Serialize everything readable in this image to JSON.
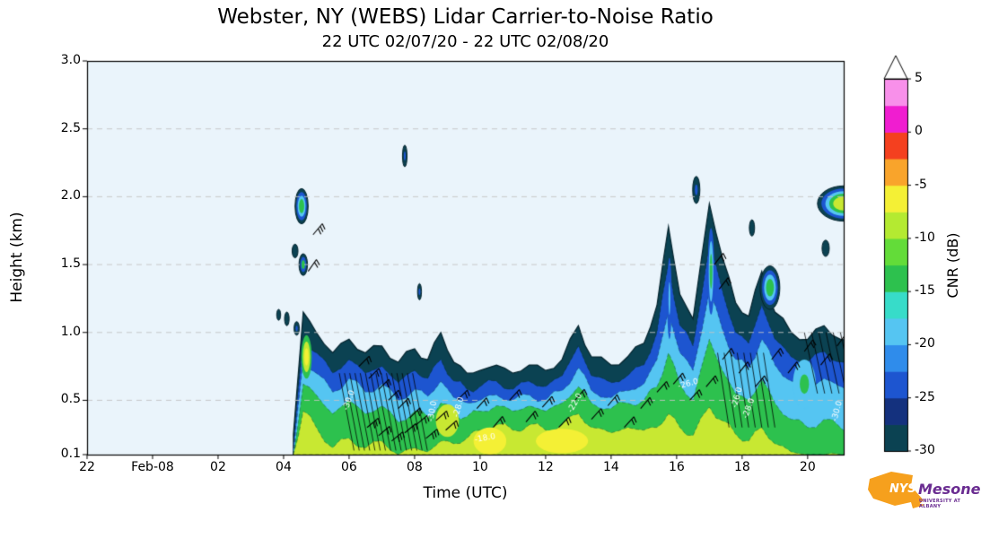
{
  "figure": {
    "title": "Webster, NY (WEBS) Lidar Carrier-to-Noise Ratio",
    "subtitle": "22 UTC 02/07/20 - 22 UTC 02/08/20"
  },
  "axes": {
    "xlabel": "Time (UTC)",
    "ylabel": "Height (km)",
    "x_ticks": [
      {
        "t": 0,
        "label": "22"
      },
      {
        "t": 2,
        "label": "Feb-08"
      },
      {
        "t": 4,
        "label": "02"
      },
      {
        "t": 6,
        "label": "04"
      },
      {
        "t": 8,
        "label": "06"
      },
      {
        "t": 10,
        "label": "08"
      },
      {
        "t": 12,
        "label": "10"
      },
      {
        "t": 14,
        "label": "12"
      },
      {
        "t": 16,
        "label": "14"
      },
      {
        "t": 18,
        "label": "16"
      },
      {
        "t": 20,
        "label": "18"
      },
      {
        "t": 22,
        "label": "20"
      }
    ],
    "y_ticks": [
      {
        "v": 0.1,
        "label": "0.1"
      },
      {
        "v": 0.5,
        "label": "0.5"
      },
      {
        "v": 1.0,
        "label": "1.0"
      },
      {
        "v": 1.5,
        "label": "1.5"
      },
      {
        "v": 2.0,
        "label": "2.0"
      },
      {
        "v": 2.5,
        "label": "2.5"
      },
      {
        "v": 3.0,
        "label": "3.0"
      }
    ]
  },
  "colorbar": {
    "label": "CNR (dB)",
    "min": -30,
    "max": 5,
    "band_step": 2.5,
    "tick_labels": [
      {
        "v": 5,
        "label": "5"
      },
      {
        "v": 0,
        "label": "0"
      },
      {
        "v": -5,
        "label": "-5"
      },
      {
        "v": -10,
        "label": "-10"
      },
      {
        "v": -15,
        "label": "-15"
      },
      {
        "v": -20,
        "label": "-20"
      },
      {
        "v": -25,
        "label": "-25"
      },
      {
        "v": -30,
        "label": "-30"
      }
    ],
    "colors_bottom_to_top": [
      "#0b4252",
      "#14317e",
      "#1d55d0",
      "#2f8ceb",
      "#55c5f2",
      "#37dcc9",
      "#2dc14e",
      "#63dc39",
      "#b4ea31",
      "#f4f035",
      "#f9a42b",
      "#f4401f",
      "#f01dd0",
      "#f890ea"
    ],
    "over_color": "#ffffff"
  },
  "chart_data": {
    "type": "heatmap",
    "subtype": "filled-contour time-height lidar CNR",
    "title": "Webster, NY (WEBS) Lidar Carrier-to-Noise Ratio",
    "subtitle": "22 UTC 02/07/20 - 22 UTC 02/08/20",
    "xlabel": "Time (UTC)",
    "ylabel": "Height (km)",
    "x_unit": "hours since 22 UTC 02/07/20",
    "x_range": [
      0,
      23.1
    ],
    "y_range_km": [
      0.1,
      3.0
    ],
    "background_color": "#eaf4fb",
    "grid_heights_km": [
      0.5,
      1.0,
      1.5,
      2.0,
      2.5,
      3.0
    ],
    "base_km": 0.1,
    "t_hours": [
      6.3,
      6.6,
      7.0,
      7.5,
      8.0,
      8.5,
      9.0,
      9.5,
      10.0,
      10.4,
      10.8,
      11.2,
      11.6,
      12.0,
      12.5,
      13.0,
      13.5,
      14.0,
      14.5,
      15.0,
      15.4,
      16.0,
      16.5,
      17.0,
      17.4,
      17.75,
      18.1,
      18.5,
      19.0,
      19.4,
      19.8,
      20.2,
      20.6,
      21.0,
      21.5,
      22.0,
      22.5,
      23.0,
      23.6,
      24.0
    ],
    "levels": [
      {
        "cnr_db": -30,
        "color": "#0b4252",
        "top_km": [
          0.25,
          1.15,
          1.0,
          0.85,
          0.95,
          0.85,
          0.9,
          0.78,
          0.88,
          0.8,
          1.0,
          0.78,
          0.7,
          0.72,
          0.76,
          0.7,
          0.76,
          0.72,
          0.8,
          1.05,
          0.82,
          0.76,
          0.82,
          0.92,
          1.2,
          1.78,
          1.28,
          1.1,
          1.95,
          1.55,
          1.22,
          1.12,
          1.45,
          1.15,
          1.0,
          0.95,
          1.05,
          0.95,
          0.9,
          0.92
        ]
      },
      {
        "cnr_db": -25,
        "color": "#1d55d0",
        "top_km": [
          0.15,
          0.95,
          0.85,
          0.7,
          0.8,
          0.7,
          0.75,
          0.63,
          0.72,
          0.66,
          0.8,
          0.64,
          0.58,
          0.6,
          0.64,
          0.58,
          0.64,
          0.6,
          0.68,
          0.9,
          0.68,
          0.63,
          0.68,
          0.76,
          1.0,
          1.5,
          1.05,
          0.9,
          1.65,
          1.3,
          1.0,
          0.92,
          1.2,
          0.95,
          0.82,
          0.78,
          0.86,
          0.78,
          0.72,
          0.75
        ]
      },
      {
        "cnr_db": -20,
        "color": "#55c5f2",
        "top_km": [
          0.1,
          0.8,
          0.7,
          0.56,
          0.66,
          0.56,
          0.62,
          0.5,
          0.58,
          0.53,
          0.64,
          0.52,
          0.48,
          0.5,
          0.54,
          0.5,
          0.54,
          0.5,
          0.57,
          0.74,
          0.57,
          0.52,
          0.57,
          0.62,
          0.8,
          1.15,
          0.85,
          0.72,
          1.3,
          1.02,
          0.8,
          0.74,
          0.95,
          0.76,
          0.64,
          0.6,
          0.66,
          0.6,
          0.55,
          0.56
        ]
      },
      {
        "cnr_db": -15,
        "color": "#2dc14e",
        "top_km": [
          0.1,
          0.62,
          0.54,
          0.4,
          0.5,
          0.4,
          0.46,
          0.34,
          0.42,
          0.38,
          0.48,
          0.4,
          0.38,
          0.42,
          0.46,
          0.42,
          0.46,
          0.42,
          0.48,
          0.6,
          0.48,
          0.44,
          0.48,
          0.5,
          0.6,
          0.85,
          0.62,
          0.5,
          0.95,
          0.72,
          0.55,
          0.5,
          0.65,
          0.48,
          0.36,
          0.3,
          0.36,
          0.3,
          0.22,
          0.18
        ]
      },
      {
        "cnr_db": -10,
        "color": "#c8e832",
        "top_km": [
          0.1,
          0.42,
          0.3,
          0.15,
          0.22,
          0.15,
          0.2,
          0.1,
          0.15,
          0.12,
          0.2,
          0.18,
          0.22,
          0.28,
          0.32,
          0.28,
          0.32,
          0.28,
          0.32,
          0.4,
          0.3,
          0.26,
          0.3,
          0.28,
          0.3,
          0.4,
          0.3,
          0.24,
          0.45,
          0.35,
          0.25,
          0.2,
          0.3,
          0.18,
          0.12,
          0.1,
          0.1,
          0.1,
          0.1,
          0.1
        ]
      }
    ],
    "blobs": [
      {
        "t": 6.55,
        "h": 1.93,
        "rt": 0.2,
        "rh": 0.13,
        "colors": [
          "#0b4252",
          "#1d55d0",
          "#55c5f2",
          "#2dc14e"
        ]
      },
      {
        "t": 6.35,
        "h": 1.6,
        "rt": 0.09,
        "rh": 0.05,
        "colors": [
          "#0b4252"
        ]
      },
      {
        "t": 6.6,
        "h": 1.5,
        "rt": 0.13,
        "rh": 0.08,
        "colors": [
          "#0b4252",
          "#1d55d0",
          "#2dc14e"
        ]
      },
      {
        "t": 6.1,
        "h": 1.1,
        "rt": 0.07,
        "rh": 0.05,
        "colors": [
          "#0b4252"
        ]
      },
      {
        "t": 6.4,
        "h": 1.03,
        "rt": 0.08,
        "rh": 0.05,
        "colors": [
          "#0b4252",
          "#1d55d0"
        ]
      },
      {
        "t": 5.85,
        "h": 1.13,
        "rt": 0.06,
        "rh": 0.04,
        "colors": [
          "#0b4252"
        ]
      },
      {
        "t": 9.7,
        "h": 2.3,
        "rt": 0.07,
        "rh": 0.08,
        "colors": [
          "#0b4252",
          "#1d55d0"
        ]
      },
      {
        "t": 10.15,
        "h": 1.3,
        "rt": 0.06,
        "rh": 0.06,
        "colors": [
          "#0b4252",
          "#1d55d0"
        ]
      },
      {
        "t": 18.6,
        "h": 2.05,
        "rt": 0.11,
        "rh": 0.1,
        "colors": [
          "#0b4252",
          "#1d55d0"
        ]
      },
      {
        "t": 20.85,
        "h": 1.33,
        "rt": 0.3,
        "rh": 0.16,
        "colors": [
          "#0b4252",
          "#1d55d0",
          "#55c5f2",
          "#2dc14e"
        ]
      },
      {
        "t": 23.1,
        "h": 1.95,
        "rt": 0.8,
        "rh": 0.13,
        "colors": [
          "#0b4252",
          "#1d55d0",
          "#55c5f2",
          "#2dc14e",
          "#c8e832"
        ]
      },
      {
        "t": 23.7,
        "h": 1.42,
        "rt": 0.22,
        "rh": 0.09,
        "colors": [
          "#0b4252",
          "#1d55d0"
        ]
      },
      {
        "t": 22.55,
        "h": 1.62,
        "rt": 0.11,
        "rh": 0.06,
        "colors": [
          "#0b4252"
        ]
      },
      {
        "t": 20.3,
        "h": 1.77,
        "rt": 0.08,
        "rh": 0.06,
        "colors": [
          "#0b4252"
        ]
      },
      {
        "t": 6.7,
        "h": 0.82,
        "rt": 0.16,
        "rh": 0.16,
        "colors": [
          "#2dc14e",
          "#c8e832",
          "#f4f035"
        ]
      },
      {
        "t": 19.05,
        "h": 1.45,
        "rt": 0.1,
        "rh": 0.32,
        "colors": [
          "#1d55d0",
          "#55c5f2",
          "#2dc14e"
        ]
      },
      {
        "t": 17.78,
        "h": 1.25,
        "rt": 0.07,
        "rh": 0.3,
        "colors": [
          "#1d55d0",
          "#55c5f2"
        ]
      },
      {
        "t": 12.3,
        "h": 0.2,
        "rt": 0.5,
        "rh": 0.1,
        "colors": [
          "#f4f035"
        ]
      },
      {
        "t": 14.5,
        "h": 0.2,
        "rt": 0.8,
        "rh": 0.09,
        "colors": [
          "#f4f035"
        ]
      },
      {
        "t": 11.0,
        "h": 0.35,
        "rt": 0.35,
        "rh": 0.12,
        "colors": [
          "#c8e832"
        ]
      },
      {
        "t": 21.9,
        "h": 0.62,
        "rt": 0.35,
        "rh": 0.18,
        "colors": [
          "#55c5f2",
          "#2dc14e"
        ]
      }
    ],
    "hatch_regions": [
      {
        "t0": 8.15,
        "t1": 10.55,
        "h0": 0.13,
        "h1": 0.7,
        "step": 0.16,
        "slant": -0.45
      },
      {
        "t0": 19.6,
        "t1": 21.1,
        "h0": 0.3,
        "h1": 0.85,
        "step": 0.2,
        "slant": -0.35
      },
      {
        "t0": 22.3,
        "t1": 23.9,
        "h0": 0.55,
        "h1": 1.0,
        "step": 0.22,
        "slant": -0.4
      }
    ],
    "wind_barbs": [
      [
        6.9,
        1.72,
        40,
        3
      ],
      [
        6.75,
        1.45,
        35,
        2
      ],
      [
        8.3,
        0.75,
        45,
        2
      ],
      [
        8.6,
        0.66,
        45,
        2
      ],
      [
        8.9,
        0.58,
        45,
        2
      ],
      [
        9.2,
        0.5,
        45,
        2
      ],
      [
        9.5,
        0.44,
        45,
        2
      ],
      [
        9.85,
        0.37,
        45,
        2
      ],
      [
        8.55,
        0.3,
        50,
        3
      ],
      [
        8.9,
        0.24,
        50,
        2
      ],
      [
        9.3,
        0.2,
        50,
        3
      ],
      [
        9.7,
        0.26,
        50,
        2
      ],
      [
        10.05,
        0.32,
        50,
        2
      ],
      [
        10.35,
        0.22,
        50,
        3
      ],
      [
        10.65,
        0.35,
        48,
        2
      ],
      [
        10.95,
        0.28,
        48,
        2
      ],
      [
        11.3,
        0.5,
        45,
        2
      ],
      [
        11.9,
        0.44,
        42,
        2
      ],
      [
        12.4,
        0.3,
        40,
        2
      ],
      [
        12.9,
        0.5,
        42,
        2
      ],
      [
        13.4,
        0.34,
        40,
        2
      ],
      [
        13.9,
        0.45,
        42,
        2
      ],
      [
        14.4,
        0.3,
        44,
        2
      ],
      [
        14.9,
        0.5,
        40,
        2
      ],
      [
        15.4,
        0.36,
        42,
        2
      ],
      [
        15.9,
        0.46,
        40,
        2
      ],
      [
        16.4,
        0.3,
        42,
        2
      ],
      [
        16.9,
        0.44,
        40,
        2
      ],
      [
        17.4,
        0.56,
        42,
        2
      ],
      [
        17.9,
        0.62,
        40,
        2
      ],
      [
        18.4,
        0.5,
        42,
        2
      ],
      [
        18.9,
        0.6,
        40,
        2
      ],
      [
        19.4,
        0.8,
        38,
        2
      ],
      [
        19.9,
        0.7,
        38,
        2
      ],
      [
        20.4,
        0.6,
        40,
        2
      ],
      [
        20.9,
        0.8,
        38,
        2
      ],
      [
        21.4,
        0.7,
        38,
        2
      ],
      [
        21.9,
        0.86,
        36,
        2
      ],
      [
        22.4,
        0.76,
        38,
        2
      ],
      [
        22.9,
        0.9,
        36,
        2
      ],
      [
        23.4,
        0.8,
        38,
        2
      ],
      [
        23.75,
        0.92,
        36,
        2
      ],
      [
        19.15,
        1.5,
        38,
        2
      ],
      [
        19.3,
        1.32,
        38,
        2
      ],
      [
        23.3,
        1.95,
        40,
        2
      ],
      [
        23.6,
        2.02,
        40,
        2
      ],
      [
        23.85,
        1.92,
        40,
        2
      ]
    ],
    "contour_labels": [
      {
        "text": "-30.0",
        "t": 8.0,
        "h": 0.5,
        "rot": -70
      },
      {
        "text": "-30.0",
        "t": 10.55,
        "h": 0.42,
        "rot": -80
      },
      {
        "text": "-28.0",
        "t": 11.35,
        "h": 0.45,
        "rot": -75
      },
      {
        "text": "-18.0",
        "t": 12.15,
        "h": 0.22,
        "rot": -10
      },
      {
        "text": "-22.0",
        "t": 14.9,
        "h": 0.48,
        "rot": -60
      },
      {
        "text": "-26.0",
        "t": 18.35,
        "h": 0.62,
        "rot": -15
      },
      {
        "text": "-26.0",
        "t": 19.85,
        "h": 0.52,
        "rot": -75
      },
      {
        "text": "-28.0",
        "t": 20.2,
        "h": 0.44,
        "rot": -70
      },
      {
        "text": "-30.0",
        "t": 22.9,
        "h": 0.42,
        "rot": -75
      },
      {
        "text": "-24.0",
        "t": 23.7,
        "h": 0.9,
        "rot": -60
      }
    ]
  },
  "logo": {
    "org": "NYS",
    "name": "Mesonet",
    "tagline": "UNIVERSITY AT ALBANY",
    "orange": "#f6a01d",
    "purple": "#6a2c91"
  }
}
